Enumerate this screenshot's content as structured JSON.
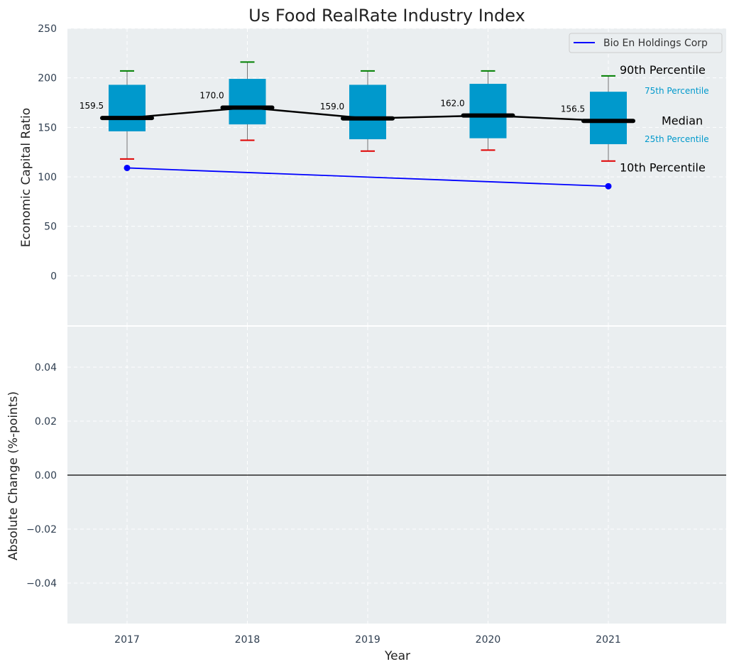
{
  "chart_data": [
    {
      "type": "box",
      "title": "Us Food RealRate Industry Index",
      "ylabel": "Economic Capital Ratio",
      "xlabel": "",
      "categories": [
        "2017",
        "2018",
        "2019",
        "2020",
        "2021"
      ],
      "ylim": [
        -50,
        250
      ],
      "yticks": [
        0,
        50,
        100,
        150,
        200,
        250
      ],
      "grid": true,
      "legend_position": "top-right",
      "boxes": [
        {
          "year": "2017",
          "p10": 118,
          "p25": 146,
          "median": 159.5,
          "p75": 193,
          "p90": 207,
          "median_label": "159.5"
        },
        {
          "year": "2018",
          "p10": 137,
          "p25": 153,
          "median": 170.0,
          "p75": 199,
          "p90": 216,
          "median_label": "170.0"
        },
        {
          "year": "2019",
          "p10": 126,
          "p25": 138,
          "median": 159.0,
          "p75": 193,
          "p90": 207,
          "median_label": "159.0"
        },
        {
          "year": "2020",
          "p10": 127,
          "p25": 139,
          "median": 162.0,
          "p75": 194,
          "p90": 207,
          "median_label": "162.0"
        },
        {
          "year": "2021",
          "p10": 116,
          "p25": 133,
          "median": 156.5,
          "p75": 186,
          "p90": 202,
          "median_label": "156.5"
        }
      ],
      "series": [
        {
          "name": "Bio En Holdings Corp",
          "x": [
            "2017",
            "2021"
          ],
          "values": [
            109,
            90.5
          ]
        }
      ],
      "annotations": {
        "p90": "90th Percentile",
        "p75": "75th Percentile",
        "median": "Median",
        "p25": "25th Percentile",
        "p10": "10th Percentile"
      }
    },
    {
      "type": "line",
      "xlabel": "Year",
      "ylabel": "Absolute Change (%-points)",
      "categories": [
        "2017",
        "2018",
        "2019",
        "2020",
        "2021"
      ],
      "ylim": [
        -0.055,
        0.055
      ],
      "yticks": [
        0.04,
        0.02,
        0.0,
        -0.02,
        -0.04
      ],
      "ytick_labels": [
        "0.04",
        "0.02",
        "0.00",
        "−0.02",
        "−0.04"
      ],
      "reference_line": 0,
      "grid": true,
      "series": []
    }
  ],
  "colors": {
    "plot_bg": "#eaeef0",
    "box_fill": "#0099cc",
    "median_line": "#000000",
    "p90_cap": "#008000",
    "p10_cap": "#e00000",
    "company_line": "#0000ff",
    "tick_text": "#2f3e50",
    "label_text": "#222222",
    "percentile_small_text": "#0099cc"
  }
}
